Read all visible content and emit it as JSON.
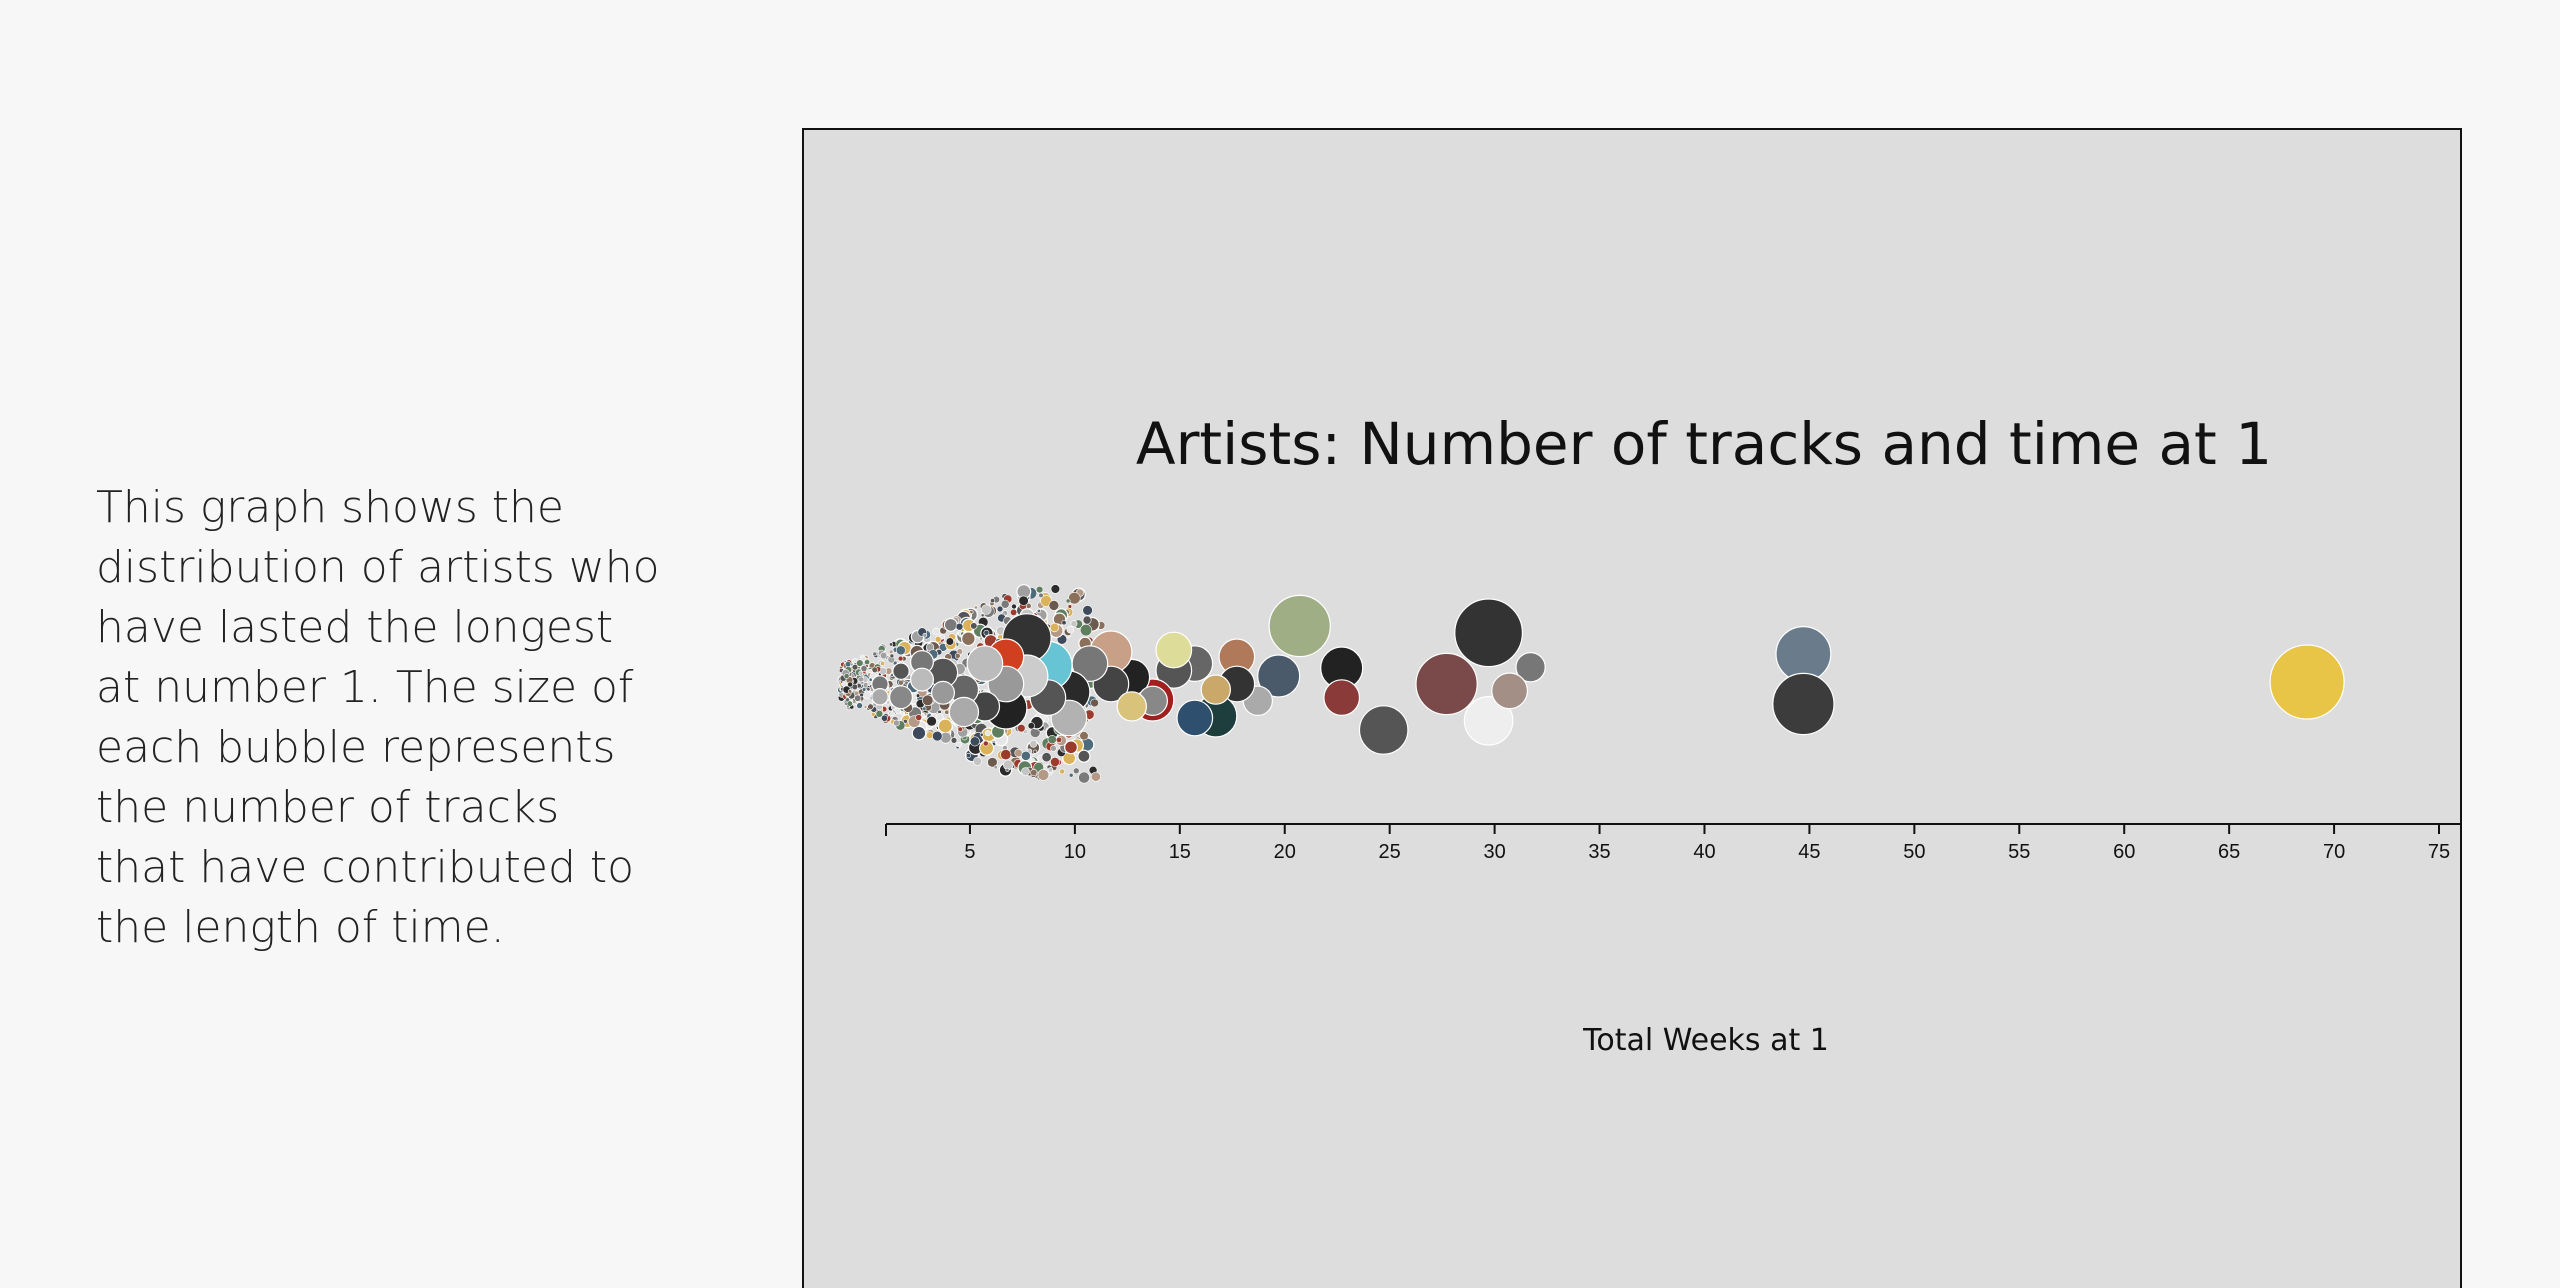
{
  "description": {
    "lines": [
      "This graph shows the",
      "distribution of artists who",
      "have lasted the longest",
      "at number 1. The size of",
      "each bubble represents",
      "the number of tracks",
      "that have contributed to",
      "the length of time."
    ]
  },
  "chart_data": {
    "type": "scatter",
    "title": "Artists: Number of tracks and time at 1",
    "xlabel": "Total Weeks at 1",
    "ylabel": "",
    "xlim": [
      1,
      76
    ],
    "xticks": [
      5,
      10,
      15,
      20,
      25,
      30,
      35,
      40,
      45,
      50,
      55,
      60,
      65,
      70,
      75
    ],
    "grid": false,
    "legend": "none",
    "bubbles": [
      {
        "x": 69,
        "size": 10,
        "color": "#e8c547"
      },
      {
        "x": 45,
        "size": 7,
        "color": "#6a7b8c"
      },
      {
        "x": 45,
        "size": 8,
        "color": "#3c3c3c"
      },
      {
        "x": 30,
        "size": 9,
        "color": "#333333"
      },
      {
        "x": 28,
        "size": 8,
        "color": "#7a4a4a"
      },
      {
        "x": 30,
        "size": 6,
        "color": "#eeeeee"
      },
      {
        "x": 32,
        "size": 3,
        "color": "#777777"
      },
      {
        "x": 31,
        "size": 4,
        "color": "#a38f86"
      },
      {
        "x": 25,
        "size": 6,
        "color": "#555555"
      },
      {
        "x": 23,
        "size": 5,
        "color": "#222222"
      },
      {
        "x": 23,
        "size": 4,
        "color": "#8b3a3a"
      },
      {
        "x": 21,
        "size": 8,
        "color": "#9fae84"
      },
      {
        "x": 20,
        "size": 5,
        "color": "#4a5a6a"
      },
      {
        "x": 19,
        "size": 3,
        "color": "#aaaaaa"
      },
      {
        "x": 18,
        "size": 4,
        "color": "#b07a5a"
      },
      {
        "x": 18,
        "size": 4,
        "color": "#333333"
      },
      {
        "x": 17,
        "size": 5,
        "color": "#1e3e3e"
      },
      {
        "x": 16,
        "size": 4,
        "color": "#666666"
      },
      {
        "x": 17,
        "size": 3,
        "color": "#c9a86a"
      },
      {
        "x": 16,
        "size": 4,
        "color": "#2f4f6f"
      },
      {
        "x": 15,
        "size": 4,
        "color": "#555555"
      },
      {
        "x": 14,
        "size": 5,
        "color": "#a02020"
      },
      {
        "x": 15,
        "size": 4,
        "color": "#dddd99"
      },
      {
        "x": 13,
        "size": 4,
        "color": "#222222"
      },
      {
        "x": 14,
        "size": 3,
        "color": "#888888"
      },
      {
        "x": 12,
        "size": 5,
        "color": "#c8a088"
      },
      {
        "x": 12,
        "size": 4,
        "color": "#444444"
      },
      {
        "x": 13,
        "size": 3,
        "color": "#d9c27a"
      },
      {
        "x": 11,
        "size": 4,
        "color": "#777777"
      },
      {
        "x": 10,
        "size": 5,
        "color": "#2a2a2a"
      },
      {
        "x": 10,
        "size": 4,
        "color": "#b2b2b2"
      },
      {
        "x": 9,
        "size": 6,
        "color": "#66c4d4"
      },
      {
        "x": 9,
        "size": 4,
        "color": "#555555"
      },
      {
        "x": 8,
        "size": 6,
        "color": "#333333"
      },
      {
        "x": 8,
        "size": 5,
        "color": "#cccccc"
      },
      {
        "x": 7,
        "size": 5,
        "color": "#222222"
      },
      {
        "x": 7,
        "size": 4,
        "color": "#d04020"
      },
      {
        "x": 7,
        "size": 4,
        "color": "#999999"
      },
      {
        "x": 6,
        "size": 3,
        "color": "#444444"
      },
      {
        "x": 6,
        "size": 4,
        "color": "#bbbbbb"
      },
      {
        "x": 5,
        "size": 3,
        "color": "#666666"
      },
      {
        "x": 5,
        "size": 3,
        "color": "#aaaaaa"
      },
      {
        "x": 4,
        "size": 3,
        "color": "#555555"
      },
      {
        "x": 4,
        "size": 2,
        "color": "#999999"
      },
      {
        "x": 3,
        "size": 2,
        "color": "#777777"
      },
      {
        "x": 3,
        "size": 2,
        "color": "#bbbbbb"
      },
      {
        "x": 2,
        "size": 2,
        "color": "#888888"
      },
      {
        "x": 2,
        "size": 1,
        "color": "#555555"
      },
      {
        "x": 1,
        "size": 1,
        "color": "#777777"
      },
      {
        "x": 1,
        "size": 1,
        "color": "#aaaaaa"
      }
    ],
    "cluster_colors": [
      "#2b2b2b",
      "#555555",
      "#7a7a7a",
      "#a0a0a0",
      "#c4c4c4",
      "#e6e6e6",
      "#6c5a4e",
      "#3d4a5c",
      "#8a6f5a",
      "#b49a86",
      "#4d6b7a",
      "#9b3b2e",
      "#d9b25a",
      "#5f7d5f"
    ]
  }
}
